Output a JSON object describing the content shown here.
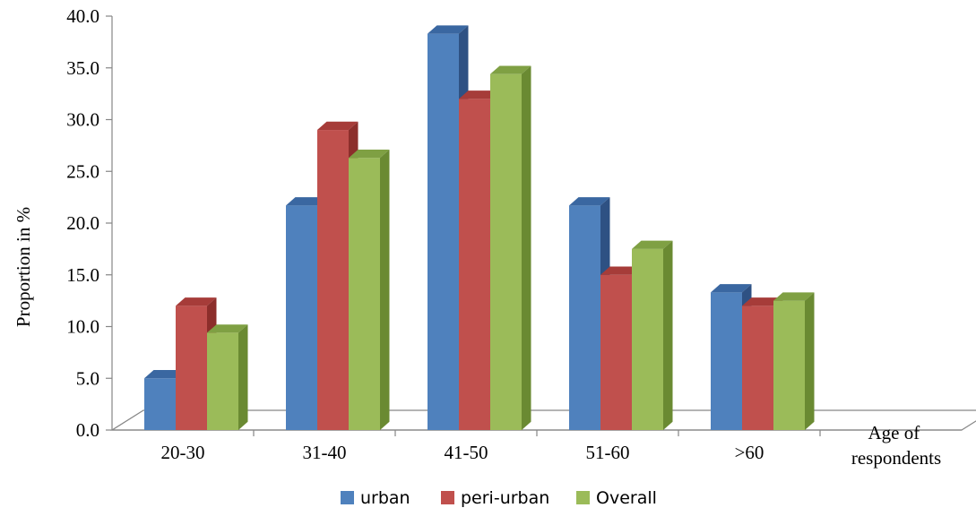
{
  "chart_data": {
    "type": "bar",
    "title": "",
    "ylabel": "Proportion in %",
    "xlabel_lines": [
      "Age of",
      "respondents"
    ],
    "categories": [
      "20-30",
      "31-40",
      "41-50",
      "51-60",
      ">60"
    ],
    "series": [
      {
        "name": "urban",
        "values": [
          5.0,
          21.7,
          38.3,
          21.7,
          13.3
        ]
      },
      {
        "name": "peri-urban",
        "values": [
          12.0,
          29.0,
          32.0,
          15.0,
          12.0
        ]
      },
      {
        "name": "Overall",
        "values": [
          9.4,
          26.3,
          34.4,
          17.5,
          12.5
        ]
      }
    ],
    "ylim": [
      0,
      40
    ],
    "yticks": [
      "0.0",
      "5.0",
      "10.0",
      "15.0",
      "20.0",
      "25.0",
      "30.0",
      "35.0",
      "40.0"
    ],
    "grid": false,
    "legend": "bottom",
    "colors": {
      "urban": {
        "face": "#4F81BD",
        "side": "#2E5183",
        "top": "#3A67A1"
      },
      "peri-urban": {
        "face": "#C0504D",
        "side": "#8C2E2B",
        "top": "#A63C39"
      },
      "Overall": {
        "face": "#9BBB59",
        "side": "#6A8A32",
        "top": "#7FA043"
      }
    }
  }
}
